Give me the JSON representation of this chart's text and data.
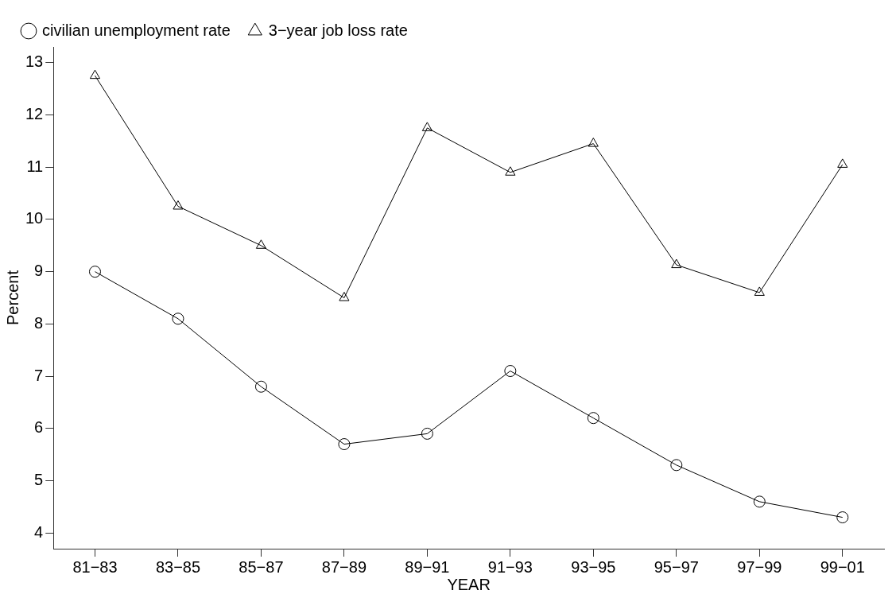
{
  "chart_data": {
    "type": "line",
    "xlabel": "YEAR",
    "ylabel": "Percent",
    "categories": [
      "81−83",
      "83−85",
      "85−87",
      "87−89",
      "89−91",
      "91−93",
      "93−95",
      "95−97",
      "97−99",
      "99−01"
    ],
    "series": [
      {
        "name": "civilian unemployment rate",
        "color": "#000000",
        "marker": "circle",
        "values": [
          9.0,
          8.1,
          6.8,
          5.7,
          5.9,
          7.1,
          6.2,
          5.3,
          4.6,
          4.3
        ]
      },
      {
        "name": "3−year job loss rate",
        "color": "#000000",
        "marker": "triangle",
        "values": [
          12.75,
          10.25,
          9.5,
          8.5,
          11.75,
          10.9,
          11.45,
          9.13,
          8.6,
          11.05
        ]
      }
    ],
    "ylim": [
      3.7,
      13.3
    ],
    "yticks": [
      4,
      5,
      6,
      7,
      8,
      9,
      10,
      11,
      12,
      13
    ],
    "grid": false,
    "legend": "top",
    "line_style": "solid"
  }
}
